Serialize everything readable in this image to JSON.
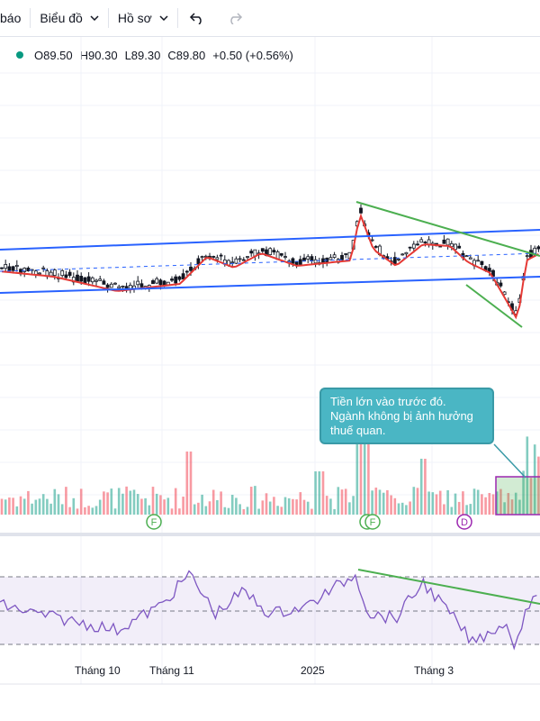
{
  "toolbar": {
    "partial_label": "báo",
    "chart_menu": "Biểu đồ",
    "profile_menu": "Hồ sơ"
  },
  "legend": {
    "open": "O89.50",
    "high": "H90.30",
    "low": "L89.30",
    "close": "C89.80",
    "change": "+0.50 (+0.56%)",
    "status_color": "#089981"
  },
  "annotation": {
    "text": "Tiền lớn vào trước đó. Ngành không bị ảnh hưởng thuế quan."
  },
  "markers": {
    "f1": "F",
    "f2": "F",
    "d": "D"
  },
  "time_axis": {
    "labels": [
      "Tháng 10",
      "Tháng 11",
      "2025",
      "Tháng 3"
    ]
  },
  "colors": {
    "up": "#089981",
    "down": "#f23645",
    "channel": "#2962ff",
    "trendline": "#4caf50",
    "ma": "#e53935",
    "rsi": "#7e57c2"
  }
}
